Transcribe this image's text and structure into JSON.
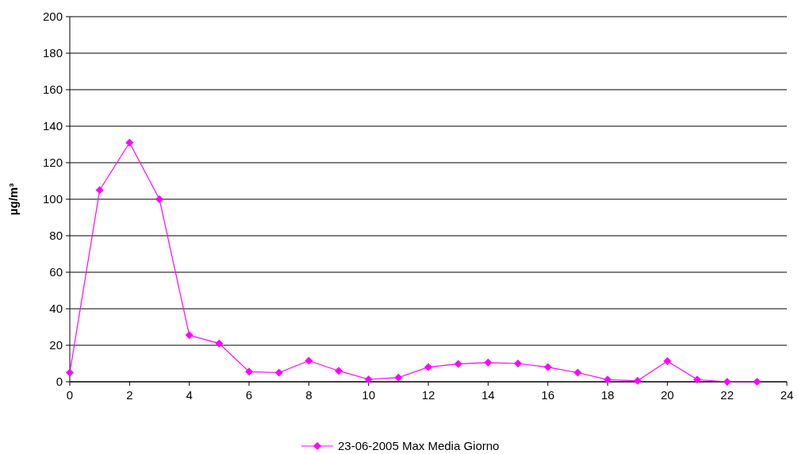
{
  "chart_data": {
    "type": "line",
    "ylabel": "µg/m³",
    "x": [
      0,
      1,
      2,
      3,
      4,
      5,
      6,
      7,
      8,
      9,
      10,
      11,
      12,
      13,
      14,
      15,
      16,
      17,
      18,
      19,
      20,
      21,
      22,
      23
    ],
    "series": [
      {
        "name": "23-06-2005 Max Media Giorno",
        "color": "#ff00ff",
        "values": [
          5,
          105,
          131,
          100,
          25.5,
          21,
          5.5,
          5,
          11.5,
          6,
          1.3,
          2.3,
          8,
          9.8,
          10.5,
          10,
          8,
          5,
          1.2,
          0.5,
          11.3,
          1.2,
          0,
          0
        ]
      }
    ],
    "xlim": [
      0,
      24
    ],
    "xticks": [
      0,
      2,
      4,
      6,
      8,
      10,
      12,
      14,
      16,
      18,
      20,
      22,
      24
    ],
    "ylim": [
      0,
      200
    ],
    "yticks": [
      0,
      20,
      40,
      60,
      80,
      100,
      120,
      140,
      160,
      180,
      200
    ],
    "grid": "y",
    "legend": "bottom",
    "marker": "diamond",
    "line_style": "solid"
  }
}
